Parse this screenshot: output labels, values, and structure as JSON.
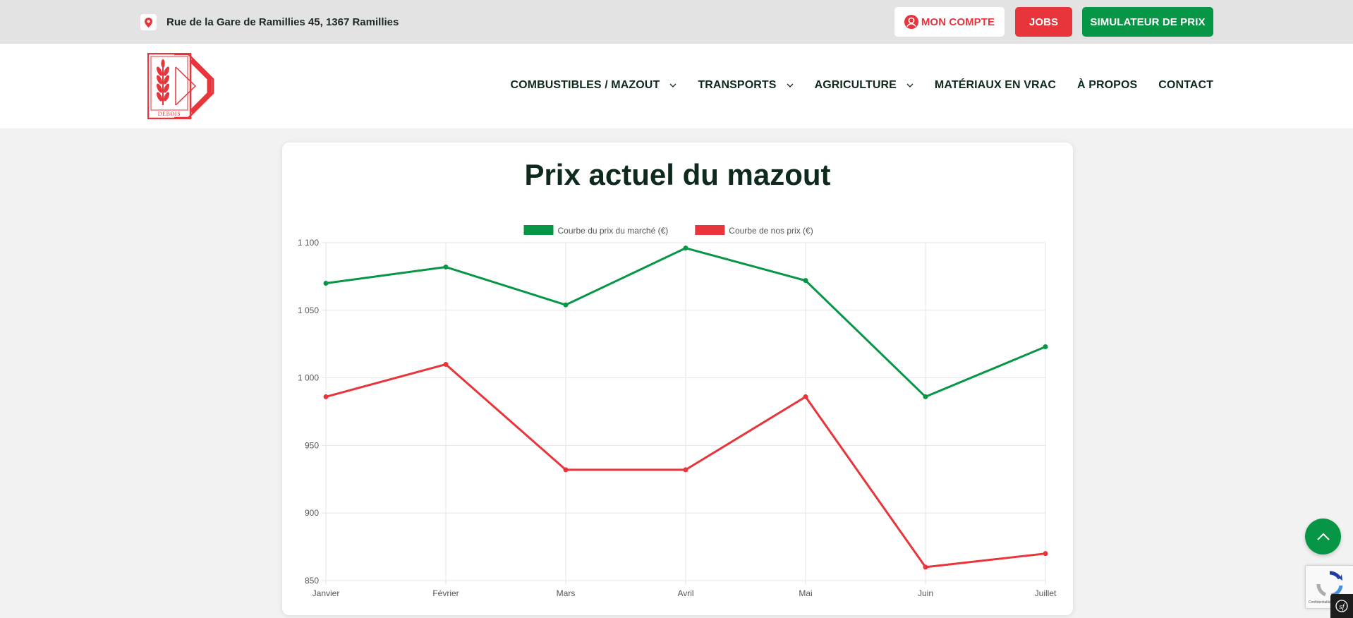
{
  "topbar": {
    "address": "Rue de la Gare de Ramillies 45, 1367 Ramillies",
    "account_label": "MON COMPTE",
    "jobs_label": "JOBS",
    "simulator_label": "SIMULATEUR DE PRIX"
  },
  "logo": {
    "text": "DEBOIS"
  },
  "nav": {
    "items": [
      {
        "label": "COMBUSTIBLES / MAZOUT",
        "has_dropdown": true
      },
      {
        "label": "TRANSPORTS",
        "has_dropdown": true
      },
      {
        "label": "AGRICULTURE",
        "has_dropdown": true
      },
      {
        "label": "MATÉRIAUX EN VRAC",
        "has_dropdown": false
      },
      {
        "label": "À PROPOS",
        "has_dropdown": false
      },
      {
        "label": "CONTACT",
        "has_dropdown": false
      }
    ]
  },
  "card": {
    "title": "Prix actuel du mazout"
  },
  "colors": {
    "green": "#069645",
    "red": "#e8343b",
    "dark": "#0e2a1c"
  },
  "icons": {
    "address": "location-pin-icon",
    "account": "user-circle-icon",
    "scroll_top": "chevron-up-icon",
    "recaptcha": "recaptcha-icon",
    "symfony": "symfony-icon"
  },
  "recaptcha": {
    "text": "Confidentialité - Conditions"
  },
  "chart_data": {
    "type": "line",
    "categories": [
      "Janvier",
      "Février",
      "Mars",
      "Avril",
      "Mai",
      "Juin",
      "Juillet"
    ],
    "series": [
      {
        "name": "Courbe du prix du marché (€)",
        "color": "#069645",
        "values": [
          1070,
          1082,
          1054,
          1096,
          1072,
          986,
          1023
        ]
      },
      {
        "name": "Courbe de nos prix (€)",
        "color": "#e8343b",
        "values": [
          986,
          1010,
          932,
          932,
          986,
          860,
          870
        ]
      }
    ],
    "ylim": [
      850,
      1100
    ],
    "yticks": [
      1100,
      1050,
      1000,
      950,
      900,
      850
    ],
    "ytick_labels": [
      "1 100",
      "1 050",
      "1 000",
      "950",
      "900",
      "850"
    ],
    "grid": true,
    "legend_position": "top"
  }
}
